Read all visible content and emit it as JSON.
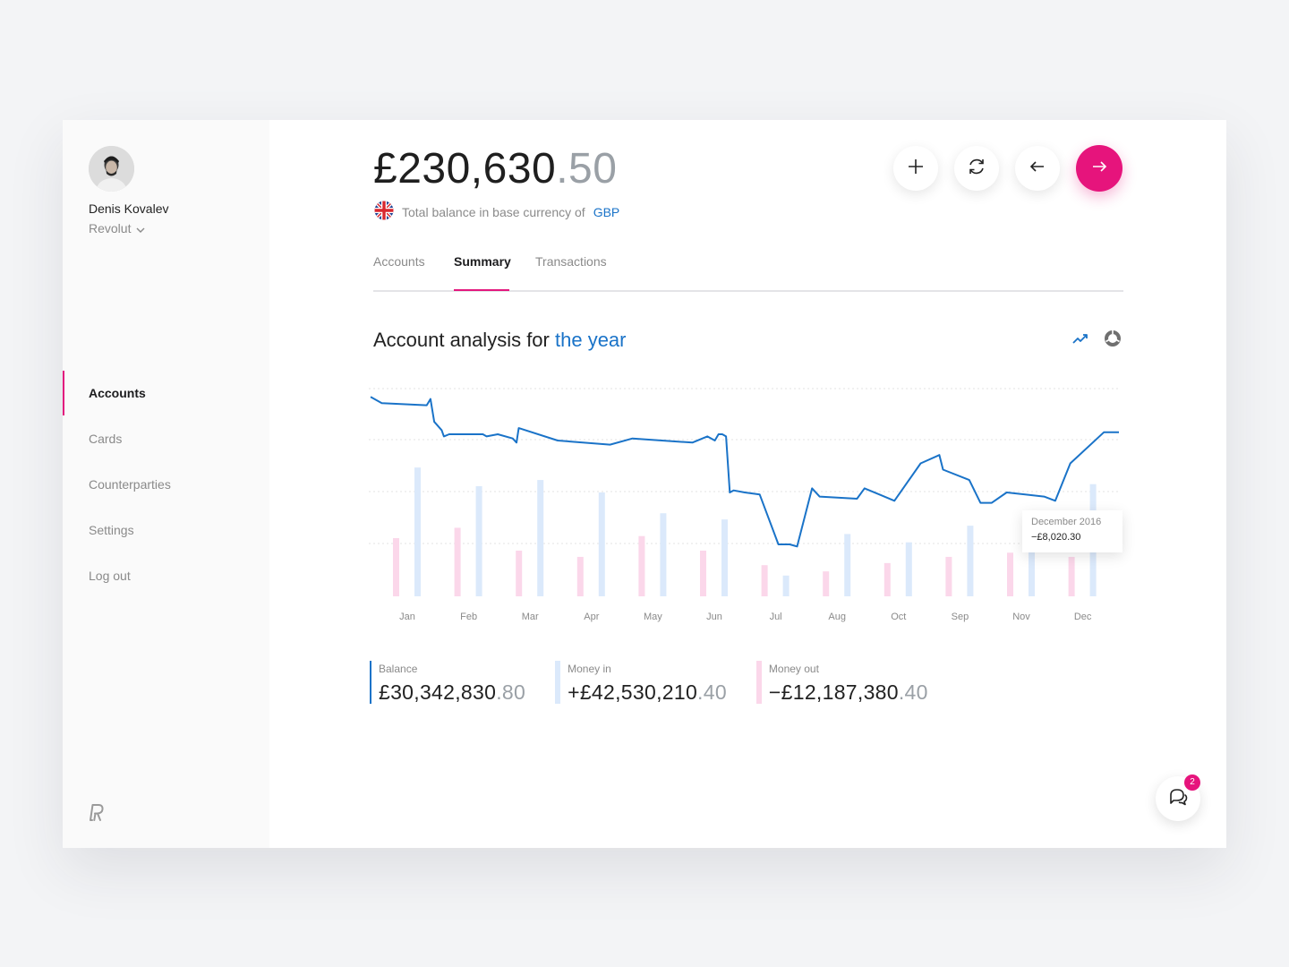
{
  "user": {
    "name": "Denis Kovalev",
    "organization": "Revolut"
  },
  "nav": {
    "items": [
      {
        "label": "Accounts",
        "active": true
      },
      {
        "label": "Cards",
        "active": false
      },
      {
        "label": "Counterparties",
        "active": false
      },
      {
        "label": "Settings",
        "active": false
      },
      {
        "label": "Log out",
        "active": false
      }
    ]
  },
  "header": {
    "balance_main": "£230,630",
    "balance_cents": ".50",
    "base_currency_text": "Total balance in base currency of",
    "base_currency": "GBP",
    "actions": [
      "add-icon",
      "refresh-icon",
      "arrow-left-icon",
      "arrow-right-icon"
    ]
  },
  "tabs": [
    {
      "label": "Accounts",
      "active": false
    },
    {
      "label": "Summary",
      "active": true
    },
    {
      "label": "Transactions",
      "active": false
    }
  ],
  "analysis": {
    "title_prefix": "Account analysis for",
    "title_highlight": "the year",
    "view_toggles": [
      "line-chart-icon",
      "donut-chart-icon"
    ]
  },
  "chart_data": {
    "type": "line",
    "categories": [
      "Jan",
      "Feb",
      "Mar",
      "Apr",
      "May",
      "Jun",
      "Jul",
      "Aug",
      "Oct",
      "Sep",
      "Nov",
      "Dec"
    ],
    "line_points": [
      [
        0.0,
        0.96
      ],
      [
        0.015,
        0.93
      ],
      [
        0.075,
        0.92
      ],
      [
        0.08,
        0.95
      ],
      [
        0.085,
        0.84
      ],
      [
        0.095,
        0.8
      ],
      [
        0.098,
        0.77
      ],
      [
        0.105,
        0.78
      ],
      [
        0.15,
        0.78
      ],
      [
        0.155,
        0.77
      ],
      [
        0.17,
        0.78
      ],
      [
        0.19,
        0.76
      ],
      [
        0.195,
        0.74
      ],
      [
        0.198,
        0.81
      ],
      [
        0.25,
        0.75
      ],
      [
        0.32,
        0.73
      ],
      [
        0.35,
        0.76
      ],
      [
        0.43,
        0.74
      ],
      [
        0.45,
        0.77
      ],
      [
        0.46,
        0.75
      ],
      [
        0.465,
        0.78
      ],
      [
        0.47,
        0.78
      ],
      [
        0.475,
        0.77
      ],
      [
        0.48,
        0.5
      ],
      [
        0.485,
        0.51
      ],
      [
        0.5,
        0.5
      ],
      [
        0.52,
        0.49
      ],
      [
        0.545,
        0.25
      ],
      [
        0.56,
        0.25
      ],
      [
        0.57,
        0.24
      ],
      [
        0.59,
        0.52
      ],
      [
        0.6,
        0.48
      ],
      [
        0.65,
        0.47
      ],
      [
        0.66,
        0.52
      ],
      [
        0.68,
        0.49
      ],
      [
        0.7,
        0.46
      ],
      [
        0.735,
        0.64
      ],
      [
        0.76,
        0.68
      ],
      [
        0.765,
        0.61
      ],
      [
        0.8,
        0.56
      ],
      [
        0.815,
        0.45
      ],
      [
        0.83,
        0.45
      ],
      [
        0.85,
        0.5
      ],
      [
        0.9,
        0.48
      ],
      [
        0.915,
        0.46
      ],
      [
        0.935,
        0.64
      ],
      [
        0.98,
        0.79
      ],
      [
        1.0,
        0.79
      ]
    ],
    "series": [
      {
        "name": "Money out",
        "values": [
          0.28,
          0.33,
          0.22,
          0.19,
          0.29,
          0.22,
          0.15,
          0.12,
          0.16,
          0.19,
          0.21,
          0.19
        ]
      },
      {
        "name": "Money in",
        "values": [
          0.62,
          0.53,
          0.56,
          0.5,
          0.4,
          0.37,
          0.1,
          0.3,
          0.26,
          0.34,
          0.25,
          0.54
        ]
      }
    ],
    "tooltip": {
      "label": "December 2016",
      "value": "−£8,020.30"
    },
    "colors": {
      "line": "#1a73c8",
      "money_in": "#dbe9fb",
      "money_out": "#fbd7ea",
      "grid": "#e3e3e3"
    }
  },
  "stats": [
    {
      "label": "Balance",
      "main": "£30,342,830",
      "cents": ".80",
      "color": "#1a73c8"
    },
    {
      "label": "Money in",
      "main": "+£42,530,210",
      "cents": ".40",
      "color": "#dbe9fb"
    },
    {
      "label": "Money out",
      "main": "−£12,187,380",
      "cents": ".40",
      "color": "#fbd7ea"
    }
  ],
  "chat": {
    "badge_count": "2"
  }
}
